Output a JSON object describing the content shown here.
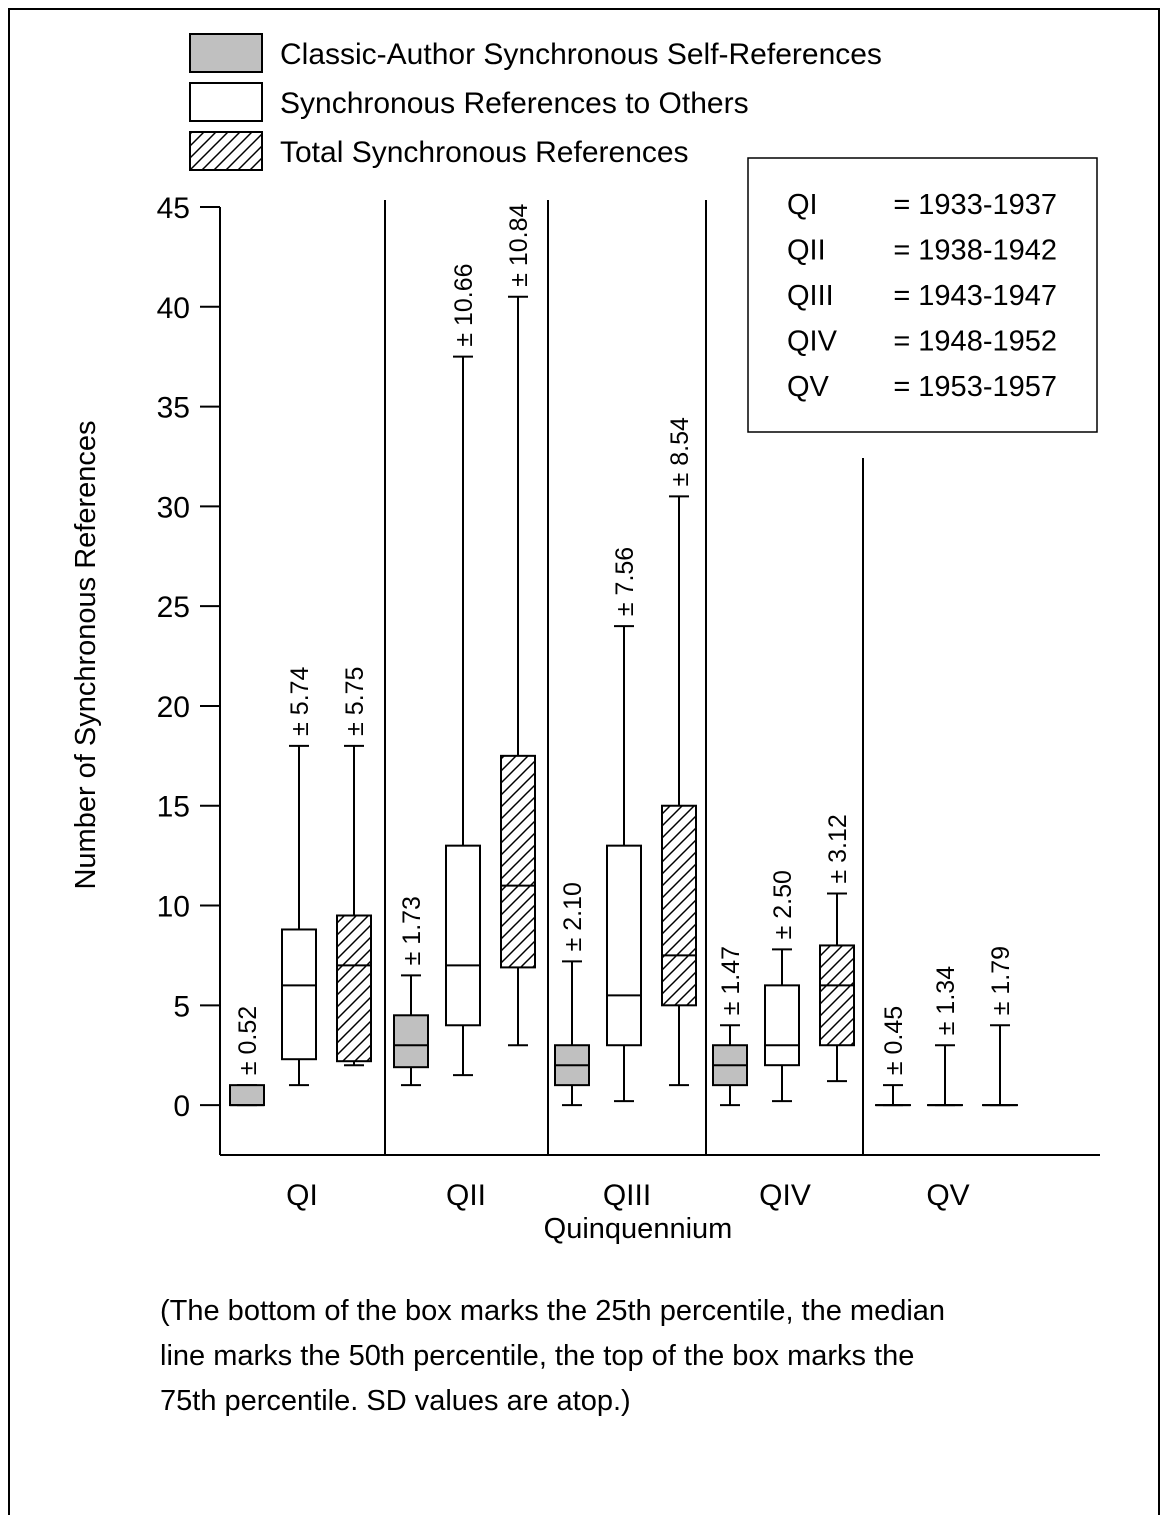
{
  "chart_data": {
    "type": "box",
    "categories": [
      "QI",
      "QII",
      "QIII",
      "QIV",
      "QV"
    ],
    "y_label": "Number of Synchronous References",
    "x_label": "Quinquennium",
    "ylim": [
      -2.5,
      45
    ],
    "yticks": [
      0,
      5,
      10,
      15,
      20,
      25,
      30,
      35,
      40,
      45
    ],
    "series": [
      {
        "name": "Classic-Author Synchronous Self-References",
        "color": "#c0c0c0",
        "hatch": false,
        "min": [
          0,
          1,
          0,
          0,
          0
        ],
        "q1": [
          0,
          1.9,
          1,
          1,
          0
        ],
        "median": [
          0,
          3,
          2,
          2,
          0
        ],
        "q3": [
          1,
          4.5,
          3,
          3,
          0
        ],
        "max": [
          1,
          6.5,
          7.2,
          4,
          1
        ],
        "sd_labels": [
          "± 0.52",
          "± 1.73",
          "± 2.10",
          "± 1.47",
          "± 0.45"
        ]
      },
      {
        "name": "Synchronous References to Others",
        "color": "#ffffff",
        "hatch": false,
        "min": [
          1,
          1.5,
          0.2,
          0.2,
          0
        ],
        "q1": [
          2.3,
          4,
          3,
          2,
          0
        ],
        "median": [
          6,
          7,
          5.5,
          3,
          0
        ],
        "q3": [
          8.8,
          13,
          13,
          6,
          0
        ],
        "max": [
          18,
          37.5,
          24,
          7.8,
          3
        ],
        "sd_labels": [
          "± 5.74",
          "± 10.66",
          "± 7.56",
          "± 2.50",
          "± 1.34"
        ]
      },
      {
        "name": "Total Synchronous References",
        "color": "#ffffff",
        "hatch": true,
        "min": [
          2,
          3,
          1,
          1.2,
          0
        ],
        "q1": [
          2.2,
          6.9,
          5,
          3,
          0
        ],
        "median": [
          7,
          11,
          7.5,
          6,
          0
        ],
        "q3": [
          9.5,
          17.5,
          15,
          8,
          0
        ],
        "max": [
          18,
          40.5,
          30.5,
          10.6,
          4
        ],
        "sd_labels": [
          "± 5.75",
          "± 10.84",
          "± 8.54",
          "± 3.12",
          "± 1.79"
        ]
      }
    ],
    "periods": [
      {
        "label": "QI",
        "range": "= 1933-1937"
      },
      {
        "label": "QII",
        "range": "= 1938-1942"
      },
      {
        "label": "QIII",
        "range": "= 1943-1947"
      },
      {
        "label": "QIV",
        "range": "= 1948-1952"
      },
      {
        "label": "QV",
        "range": "= 1953-1957"
      }
    ],
    "caption": [
      "(The bottom of the box marks the 25th percentile, the median",
      "line marks the 50th percentile, the top of  the  box marks the",
      "75th percentile. SD values are atop.)"
    ]
  }
}
